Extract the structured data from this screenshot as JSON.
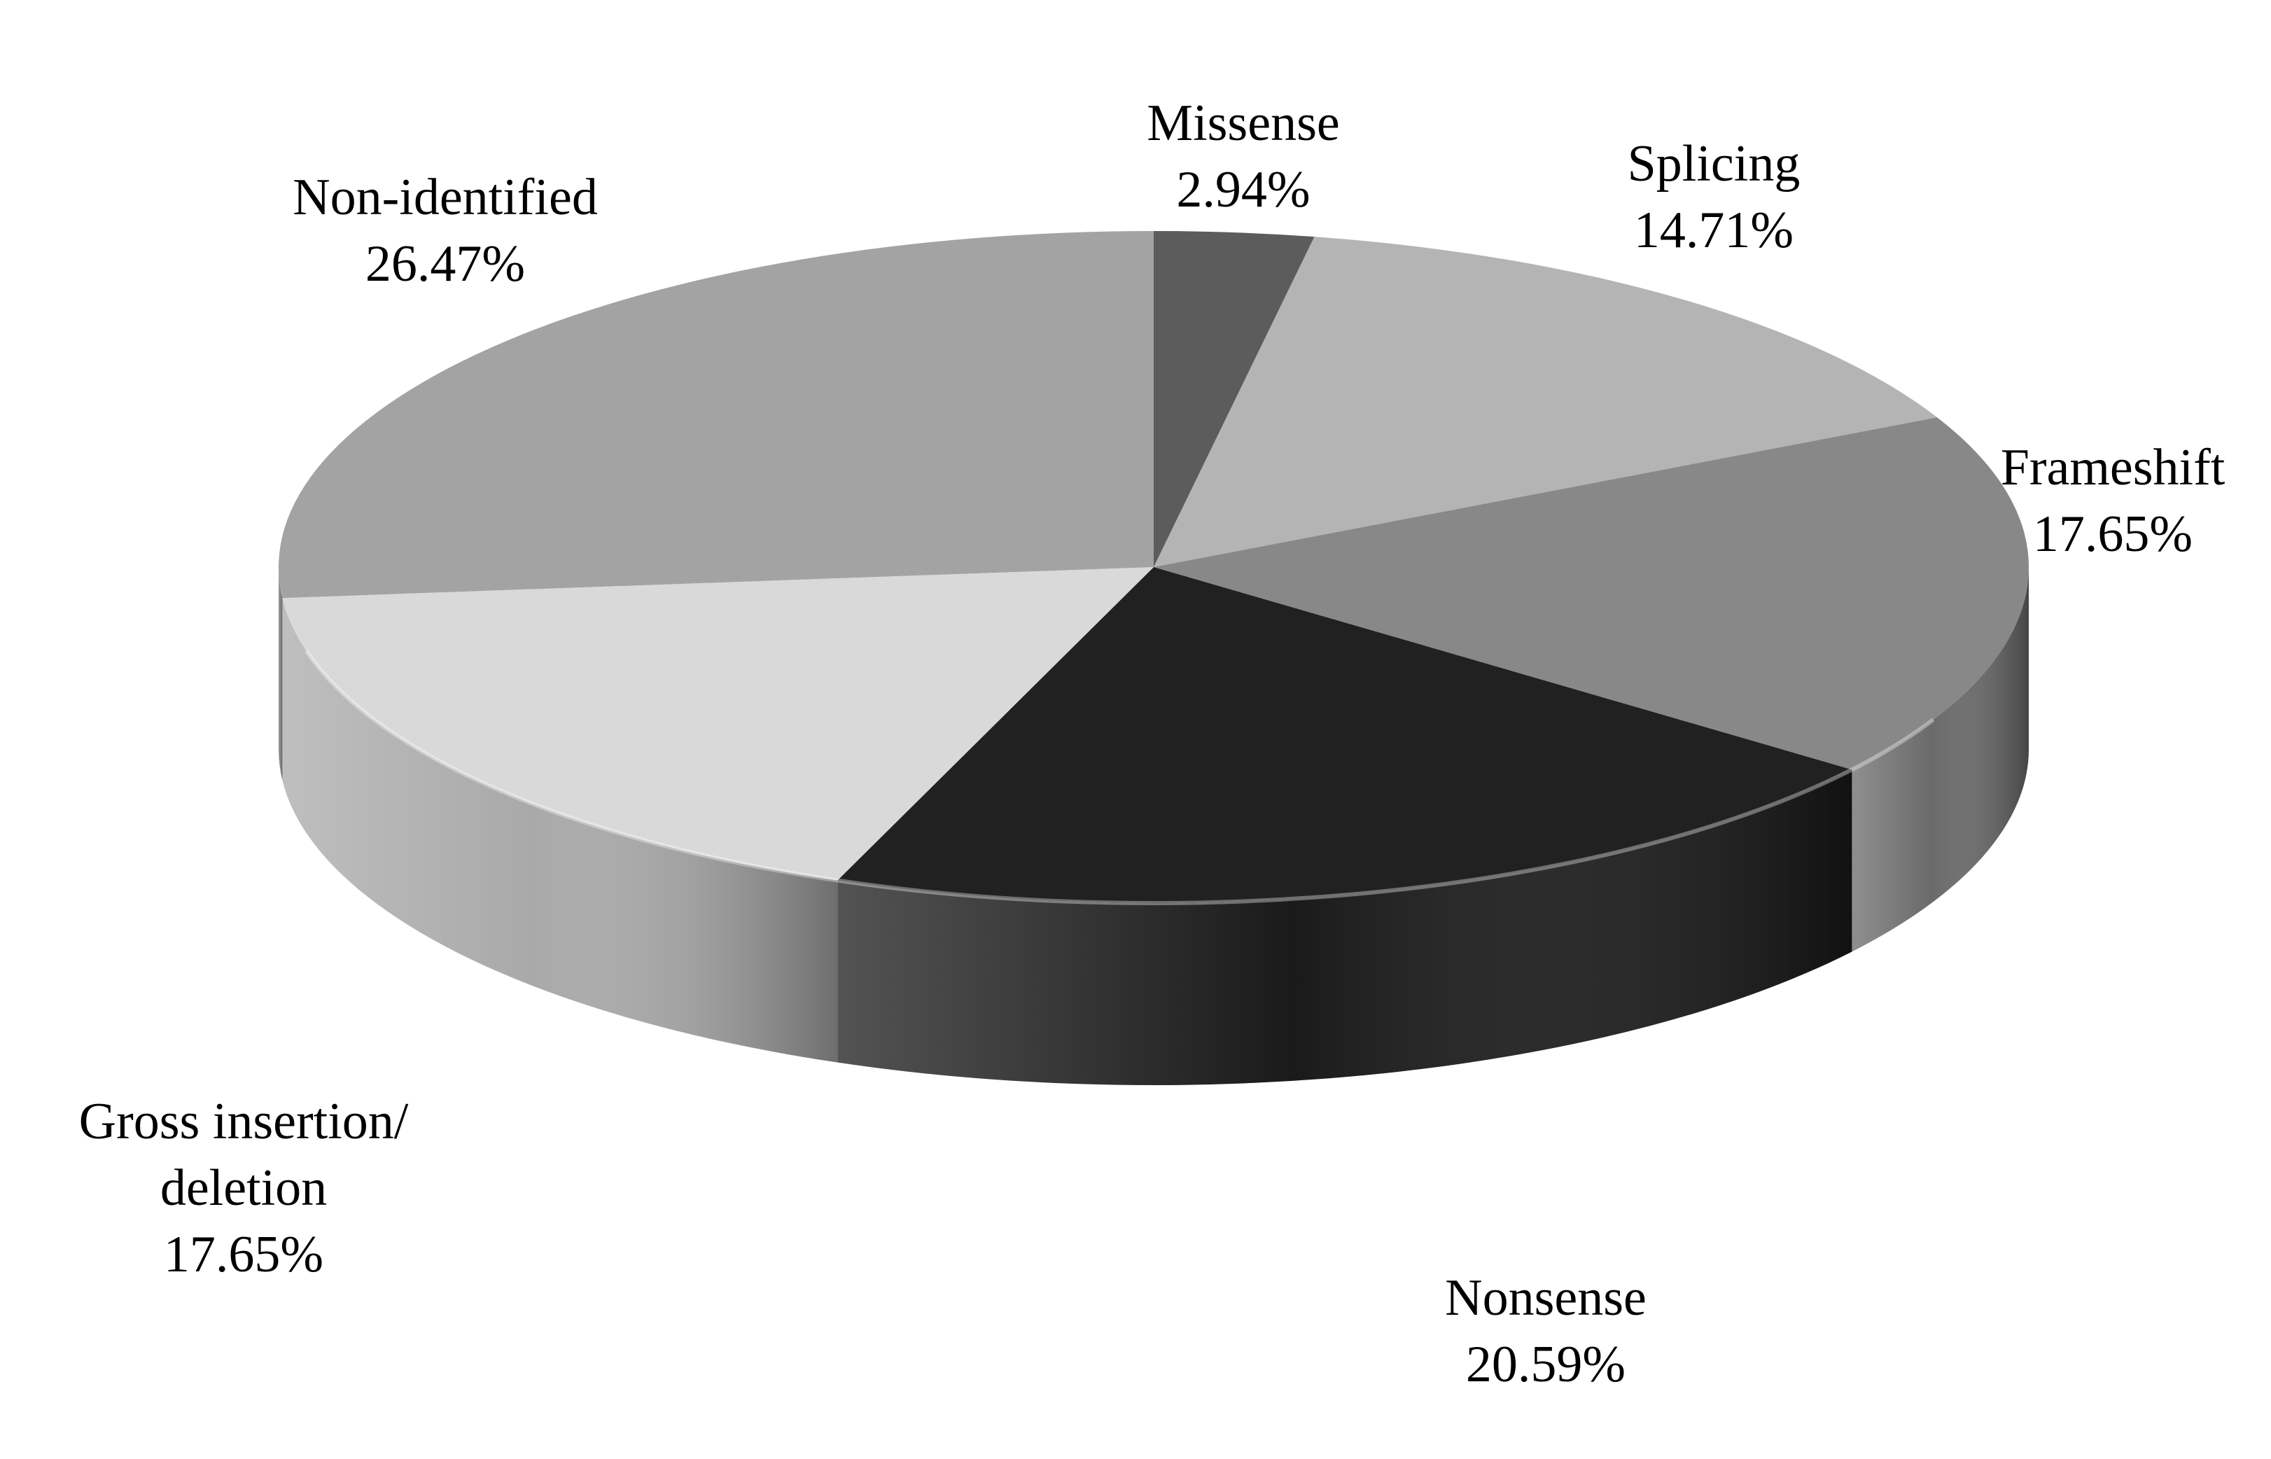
{
  "chart_data": {
    "type": "pie",
    "style": "3d",
    "unit": "%",
    "slices": [
      {
        "label": [
          "Missense"
        ],
        "value": 2.94,
        "value_label": "2.94%",
        "color": "#5c5c5c"
      },
      {
        "label": [
          "Splicing"
        ],
        "value": 14.71,
        "value_label": "14.71%",
        "color": "#b4b4b4"
      },
      {
        "label": [
          "Frameshift"
        ],
        "value": 17.65,
        "value_label": "17.65%",
        "color": "#888888"
      },
      {
        "label": [
          "Nonsense"
        ],
        "value": 20.59,
        "value_label": "20.59%",
        "color": "#212121"
      },
      {
        "label": [
          "Gross insertion/",
          "deletion"
        ],
        "value": 17.65,
        "value_label": "17.65%",
        "color": "#d9d9d9"
      },
      {
        "label": [
          "Non-identified"
        ],
        "value": 26.47,
        "value_label": "26.47%",
        "color": "#a3a3a3"
      }
    ]
  }
}
